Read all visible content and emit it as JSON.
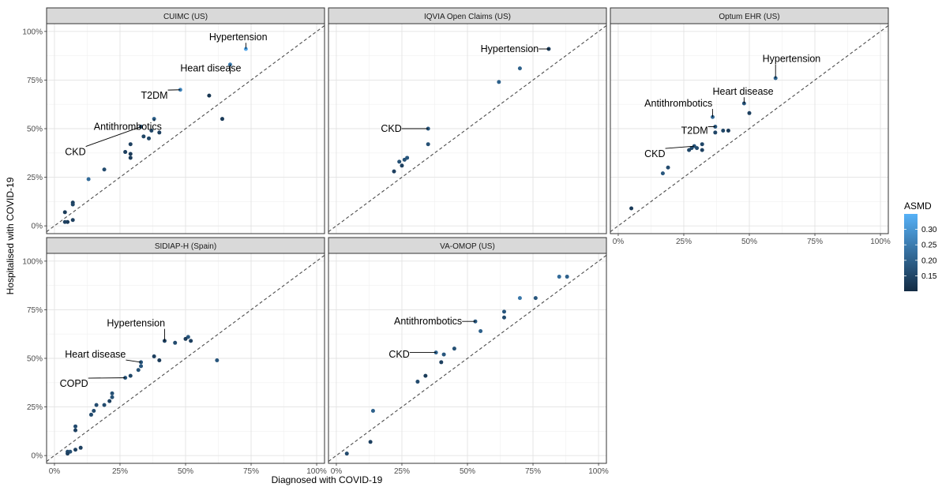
{
  "chart_data": {
    "type": "scatter",
    "xlabel": "Diagnosed with COVID-19",
    "ylabel": "Hospitalised with COVID-19",
    "xlim": [
      -0.03,
      1.03
    ],
    "ylim": [
      -0.04,
      1.04
    ],
    "ticks": [
      0,
      0.25,
      0.5,
      0.75,
      1.0
    ],
    "tick_labels": [
      "0%",
      "25%",
      "50%",
      "75%",
      "100%"
    ],
    "reference_line": "y = x (dashed)",
    "grid": true,
    "legend": {
      "title": "ASMD",
      "placement": "right",
      "min": 0.1,
      "max": 0.35,
      "ticks": [
        0.15,
        0.2,
        0.25,
        0.3
      ],
      "tick_labels": [
        "0.15",
        "0.20",
        "0.25",
        "0.30"
      ],
      "low_color": "#132B43",
      "high_color": "#56B1F7"
    },
    "panels": [
      {
        "title": "CUIMC (US)",
        "points": [
          {
            "x": 0.73,
            "y": 0.91,
            "asmd": 0.33
          },
          {
            "x": 0.67,
            "y": 0.83,
            "asmd": 0.25
          },
          {
            "x": 0.48,
            "y": 0.7,
            "asmd": 0.27
          },
          {
            "x": 0.59,
            "y": 0.67,
            "asmd": 0.12
          },
          {
            "x": 0.38,
            "y": 0.55,
            "asmd": 0.2
          },
          {
            "x": 0.64,
            "y": 0.55,
            "asmd": 0.13
          },
          {
            "x": 0.33,
            "y": 0.51,
            "asmd": 0.18
          },
          {
            "x": 0.37,
            "y": 0.49,
            "asmd": 0.15
          },
          {
            "x": 0.4,
            "y": 0.48,
            "asmd": 0.14
          },
          {
            "x": 0.34,
            "y": 0.46,
            "asmd": 0.15
          },
          {
            "x": 0.36,
            "y": 0.45,
            "asmd": 0.15
          },
          {
            "x": 0.29,
            "y": 0.42,
            "asmd": 0.14
          },
          {
            "x": 0.27,
            "y": 0.38,
            "asmd": 0.14
          },
          {
            "x": 0.29,
            "y": 0.37,
            "asmd": 0.13
          },
          {
            "x": 0.29,
            "y": 0.35,
            "asmd": 0.13
          },
          {
            "x": 0.19,
            "y": 0.29,
            "asmd": 0.16
          },
          {
            "x": 0.13,
            "y": 0.24,
            "asmd": 0.22
          },
          {
            "x": 0.07,
            "y": 0.12,
            "asmd": 0.14
          },
          {
            "x": 0.07,
            "y": 0.11,
            "asmd": 0.15
          },
          {
            "x": 0.04,
            "y": 0.07,
            "asmd": 0.13
          },
          {
            "x": 0.07,
            "y": 0.03,
            "asmd": 0.14
          },
          {
            "x": 0.05,
            "y": 0.02,
            "asmd": 0.13
          },
          {
            "x": 0.04,
            "y": 0.02,
            "asmd": 0.14
          }
        ],
        "labels": [
          {
            "text": "Hypertension",
            "x": 0.73,
            "y": 0.91,
            "tx": 0.59,
            "ty": 0.97
          },
          {
            "text": "Heart disease",
            "x": 0.67,
            "y": 0.83,
            "tx": 0.48,
            "ty": 0.81
          },
          {
            "text": "T2DM",
            "x": 0.48,
            "y": 0.7,
            "tx": 0.33,
            "ty": 0.67
          },
          {
            "text": "Antithrombotics",
            "x": 0.38,
            "y": 0.55,
            "tx": 0.15,
            "ty": 0.51
          },
          {
            "text": "CKD",
            "x": 0.33,
            "y": 0.51,
            "tx": 0.04,
            "ty": 0.38
          }
        ]
      },
      {
        "title": "IQVIA Open Claims (US)",
        "points": [
          {
            "x": 0.81,
            "y": 0.91,
            "asmd": 0.13
          },
          {
            "x": 0.7,
            "y": 0.81,
            "asmd": 0.2
          },
          {
            "x": 0.62,
            "y": 0.74,
            "asmd": 0.2
          },
          {
            "x": 0.35,
            "y": 0.5,
            "asmd": 0.18
          },
          {
            "x": 0.35,
            "y": 0.42,
            "asmd": 0.17
          },
          {
            "x": 0.27,
            "y": 0.35,
            "asmd": 0.18
          },
          {
            "x": 0.26,
            "y": 0.34,
            "asmd": 0.17
          },
          {
            "x": 0.24,
            "y": 0.33,
            "asmd": 0.17
          },
          {
            "x": 0.25,
            "y": 0.31,
            "asmd": 0.14
          },
          {
            "x": 0.22,
            "y": 0.28,
            "asmd": 0.14
          }
        ],
        "labels": [
          {
            "text": "Hypertension",
            "x": 0.81,
            "y": 0.91,
            "tx": 0.55,
            "ty": 0.91
          },
          {
            "text": "CKD",
            "x": 0.35,
            "y": 0.5,
            "tx": 0.17,
            "ty": 0.5
          }
        ]
      },
      {
        "title": "Optum EHR (US)",
        "points": [
          {
            "x": 0.6,
            "y": 0.76,
            "asmd": 0.21
          },
          {
            "x": 0.48,
            "y": 0.63,
            "asmd": 0.18
          },
          {
            "x": 0.5,
            "y": 0.58,
            "asmd": 0.14
          },
          {
            "x": 0.36,
            "y": 0.56,
            "asmd": 0.22
          },
          {
            "x": 0.37,
            "y": 0.51,
            "asmd": 0.18
          },
          {
            "x": 0.4,
            "y": 0.49,
            "asmd": 0.15
          },
          {
            "x": 0.42,
            "y": 0.49,
            "asmd": 0.13
          },
          {
            "x": 0.37,
            "y": 0.48,
            "asmd": 0.15
          },
          {
            "x": 0.32,
            "y": 0.42,
            "asmd": 0.15
          },
          {
            "x": 0.29,
            "y": 0.41,
            "asmd": 0.18
          },
          {
            "x": 0.3,
            "y": 0.4,
            "asmd": 0.16
          },
          {
            "x": 0.28,
            "y": 0.4,
            "asmd": 0.16
          },
          {
            "x": 0.32,
            "y": 0.39,
            "asmd": 0.14
          },
          {
            "x": 0.27,
            "y": 0.39,
            "asmd": 0.15
          },
          {
            "x": 0.19,
            "y": 0.3,
            "asmd": 0.16
          },
          {
            "x": 0.17,
            "y": 0.27,
            "asmd": 0.18
          },
          {
            "x": 0.05,
            "y": 0.09,
            "asmd": 0.13
          }
        ],
        "labels": [
          {
            "text": "Hypertension",
            "x": 0.6,
            "y": 0.76,
            "tx": 0.55,
            "ty": 0.86
          },
          {
            "text": "Heart disease",
            "x": 0.48,
            "y": 0.63,
            "tx": 0.36,
            "ty": 0.69
          },
          {
            "text": "Antithrombotics",
            "x": 0.36,
            "y": 0.56,
            "tx": 0.1,
            "ty": 0.63
          },
          {
            "text": "T2DM",
            "x": 0.37,
            "y": 0.51,
            "tx": 0.24,
            "ty": 0.49
          },
          {
            "text": "CKD",
            "x": 0.29,
            "y": 0.41,
            "tx": 0.1,
            "ty": 0.37
          }
        ]
      },
      {
        "title": "SIDIAP-H (Spain)",
        "points": [
          {
            "x": 0.62,
            "y": 0.49,
            "asmd": 0.18
          },
          {
            "x": 0.51,
            "y": 0.61,
            "asmd": 0.18
          },
          {
            "x": 0.5,
            "y": 0.6,
            "asmd": 0.13
          },
          {
            "x": 0.52,
            "y": 0.59,
            "asmd": 0.14
          },
          {
            "x": 0.46,
            "y": 0.58,
            "asmd": 0.16
          },
          {
            "x": 0.42,
            "y": 0.59,
            "asmd": 0.14
          },
          {
            "x": 0.38,
            "y": 0.51,
            "asmd": 0.14
          },
          {
            "x": 0.4,
            "y": 0.49,
            "asmd": 0.13
          },
          {
            "x": 0.33,
            "y": 0.48,
            "asmd": 0.18
          },
          {
            "x": 0.33,
            "y": 0.46,
            "asmd": 0.18
          },
          {
            "x": 0.32,
            "y": 0.44,
            "asmd": 0.17
          },
          {
            "x": 0.29,
            "y": 0.41,
            "asmd": 0.15
          },
          {
            "x": 0.27,
            "y": 0.4,
            "asmd": 0.18
          },
          {
            "x": 0.22,
            "y": 0.32,
            "asmd": 0.17
          },
          {
            "x": 0.22,
            "y": 0.3,
            "asmd": 0.17
          },
          {
            "x": 0.21,
            "y": 0.28,
            "asmd": 0.14
          },
          {
            "x": 0.19,
            "y": 0.26,
            "asmd": 0.16
          },
          {
            "x": 0.16,
            "y": 0.26,
            "asmd": 0.16
          },
          {
            "x": 0.15,
            "y": 0.23,
            "asmd": 0.16
          },
          {
            "x": 0.14,
            "y": 0.21,
            "asmd": 0.16
          },
          {
            "x": 0.08,
            "y": 0.15,
            "asmd": 0.16
          },
          {
            "x": 0.08,
            "y": 0.13,
            "asmd": 0.14
          },
          {
            "x": 0.1,
            "y": 0.04,
            "asmd": 0.14
          },
          {
            "x": 0.08,
            "y": 0.03,
            "asmd": 0.14
          },
          {
            "x": 0.06,
            "y": 0.02,
            "asmd": 0.17
          },
          {
            "x": 0.05,
            "y": 0.02,
            "asmd": 0.16
          },
          {
            "x": 0.05,
            "y": 0.01,
            "asmd": 0.14
          }
        ],
        "labels": [
          {
            "text": "Hypertension",
            "x": 0.42,
            "y": 0.59,
            "tx": 0.2,
            "ty": 0.68
          },
          {
            "text": "Heart disease",
            "x": 0.33,
            "y": 0.48,
            "tx": 0.04,
            "ty": 0.52
          },
          {
            "text": "COPD",
            "x": 0.27,
            "y": 0.4,
            "tx": 0.02,
            "ty": 0.37
          }
        ]
      },
      {
        "title": "VA-OMOP (US)",
        "points": [
          {
            "x": 0.85,
            "y": 0.92,
            "asmd": 0.22
          },
          {
            "x": 0.88,
            "y": 0.92,
            "asmd": 0.2
          },
          {
            "x": 0.7,
            "y": 0.81,
            "asmd": 0.24
          },
          {
            "x": 0.76,
            "y": 0.81,
            "asmd": 0.18
          },
          {
            "x": 0.64,
            "y": 0.74,
            "asmd": 0.18
          },
          {
            "x": 0.64,
            "y": 0.71,
            "asmd": 0.16
          },
          {
            "x": 0.53,
            "y": 0.69,
            "asmd": 0.18
          },
          {
            "x": 0.55,
            "y": 0.64,
            "asmd": 0.2
          },
          {
            "x": 0.45,
            "y": 0.55,
            "asmd": 0.17
          },
          {
            "x": 0.38,
            "y": 0.53,
            "asmd": 0.2
          },
          {
            "x": 0.41,
            "y": 0.52,
            "asmd": 0.18
          },
          {
            "x": 0.4,
            "y": 0.48,
            "asmd": 0.14
          },
          {
            "x": 0.34,
            "y": 0.41,
            "asmd": 0.13
          },
          {
            "x": 0.31,
            "y": 0.38,
            "asmd": 0.16
          },
          {
            "x": 0.14,
            "y": 0.23,
            "asmd": 0.2
          },
          {
            "x": 0.13,
            "y": 0.07,
            "asmd": 0.14
          },
          {
            "x": 0.04,
            "y": 0.01,
            "asmd": 0.16
          }
        ],
        "labels": [
          {
            "text": "Antithrombotics",
            "x": 0.53,
            "y": 0.69,
            "tx": 0.22,
            "ty": 0.69
          },
          {
            "text": "CKD",
            "x": 0.38,
            "y": 0.53,
            "tx": 0.2,
            "ty": 0.52
          }
        ]
      }
    ]
  }
}
